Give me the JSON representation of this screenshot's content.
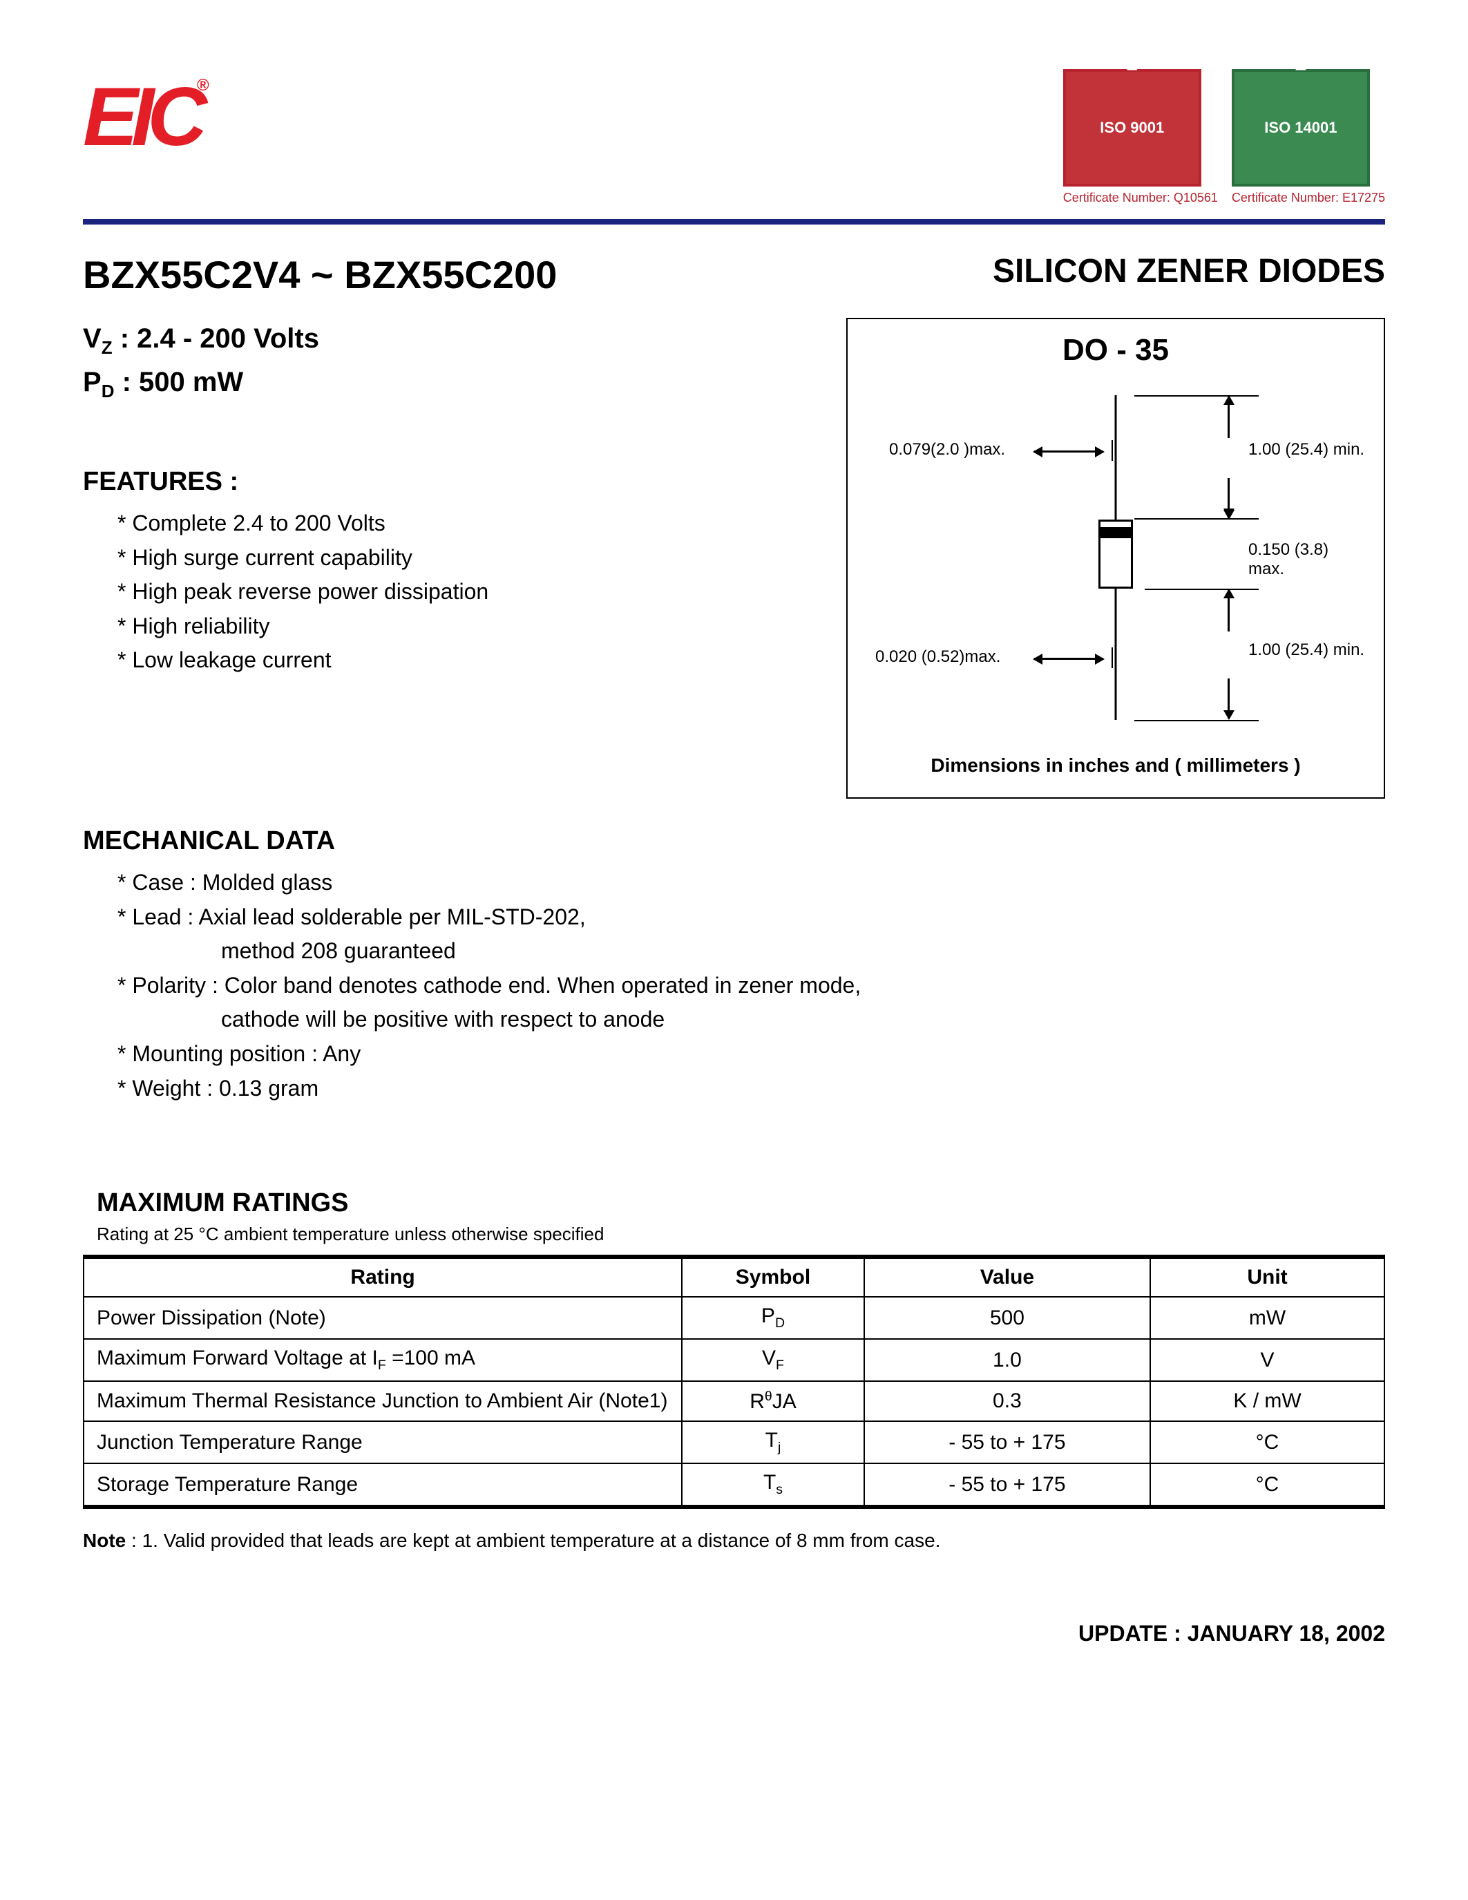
{
  "header": {
    "logo_text": "EIC",
    "logo_color": "#e41e26",
    "cert1_label": "ISO 9001",
    "cert1_caption": "Certificate Number: Q10561",
    "cert1_color": "#c13239",
    "cert2_label": "ISO 14001",
    "cert2_caption": "Certificate Number: E17275",
    "cert2_color": "#3a8a52",
    "divider_color": "#1a237e"
  },
  "titles": {
    "part_range": "BZX55C2V4 ~ BZX55C200",
    "product": "SILICON ZENER DIODES"
  },
  "specs": {
    "vz_line_prefix": "V",
    "vz_sub": "Z",
    "vz_value": " : 2.4 - 200 Volts",
    "pd_line_prefix": "P",
    "pd_sub": "D",
    "pd_value": " : 500 mW"
  },
  "features": {
    "heading": "FEATURES :",
    "items": [
      "* Complete 2.4  to 200 Volts",
      "* High surge current capability",
      "* High peak reverse power dissipation",
      "* High reliability",
      "* Low leakage current"
    ]
  },
  "mechanical": {
    "heading": "MECHANICAL DATA",
    "items": [
      "* Case : Molded glass",
      "* Lead : Axial lead solderable per MIL-STD-202,",
      "method 208 guaranteed",
      "* Polarity : Color band denotes cathode end. When operated in zener mode,",
      "cathode will be positive with respect to anode",
      "* Mounting position : Any",
      "* Weight :  0.13 gram"
    ],
    "indent_indices": [
      2,
      4
    ]
  },
  "package": {
    "title": "DO - 35",
    "dim_lead_dia": "0.079(2.0 )max.",
    "dim_lead_len_top": "1.00 (25.4) min.",
    "dim_body_dia": "0.150 (3.8) max.",
    "dim_body_outer": "0.020 (0.52)max.",
    "dim_lead_len_bot": "1.00 (25.4) min.",
    "caption": "Dimensions in inches and ( millimeters )"
  },
  "ratings": {
    "heading": "MAXIMUM RATINGS",
    "subheading": "Rating at 25 °C ambient temperature unless otherwise specified",
    "columns": [
      "Rating",
      "Symbol",
      "Value",
      "Unit"
    ],
    "rows": [
      {
        "rating": "Power Dissipation  (Note)",
        "symbol_html": "P<sub>D</sub>",
        "value": "500",
        "unit": "mW"
      },
      {
        "rating_html": "Maximum Forward Voltage at I<sub>F</sub> =100 mA",
        "symbol_html": "V<sub>F</sub>",
        "value": "1.0",
        "unit": "V"
      },
      {
        "rating": "Maximum Thermal Resistance Junction to Ambient Air (Note1)",
        "symbol_html": "R<sup>θ</sup>JA",
        "value": "0.3",
        "unit": "K / mW"
      },
      {
        "rating": "Junction Temperature Range",
        "symbol_html": "T<sub>j</sub>",
        "value": "- 55 to + 175",
        "unit": "°C"
      },
      {
        "rating": "Storage Temperature Range",
        "symbol_html": "T<sub>s</sub>",
        "value": "- 55 to + 175",
        "unit": "°C"
      }
    ]
  },
  "note": "Note :  1. Valid provided that leads are kept at ambient temperature at a distance of 8 mm from case.",
  "update": "UPDATE : JANUARY 18, 2002"
}
